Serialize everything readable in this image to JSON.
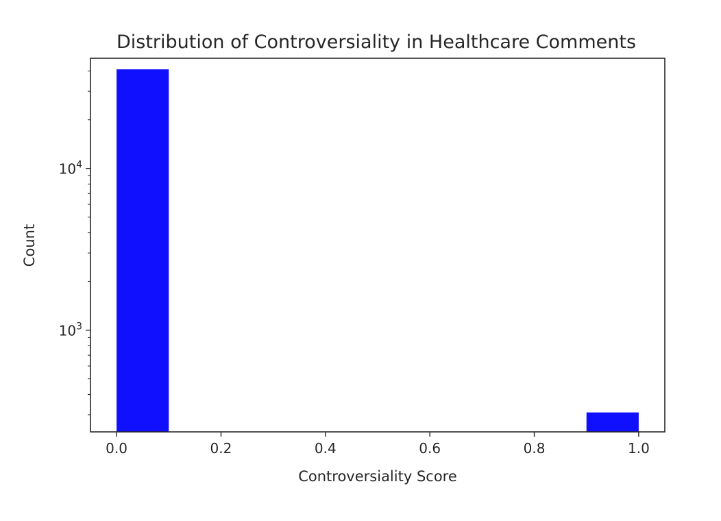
{
  "chart_data": {
    "type": "bar",
    "title": "Distribution of Controversiality in Healthcare Comments",
    "xlabel": "Controversiality Score",
    "ylabel": "Count",
    "y_scale": "log",
    "xlim": [
      -0.05,
      1.05
    ],
    "ylim": [
      235,
      48000
    ],
    "bins": [
      {
        "x_start": 0.0,
        "x_end": 0.1,
        "count": 41000
      },
      {
        "x_start": 0.9,
        "x_end": 1.0,
        "count": 310
      }
    ],
    "x_ticks": [
      {
        "value": 0.0,
        "label": "0.0"
      },
      {
        "value": 0.2,
        "label": "0.2"
      },
      {
        "value": 0.4,
        "label": "0.4"
      },
      {
        "value": 0.6,
        "label": "0.6"
      },
      {
        "value": 0.8,
        "label": "0.8"
      },
      {
        "value": 1.0,
        "label": "1.0"
      }
    ],
    "y_major_ticks": [
      {
        "value": 1000,
        "base": "10",
        "exponent": "3"
      },
      {
        "value": 10000,
        "base": "10",
        "exponent": "4"
      }
    ],
    "grid": false,
    "bar_color": "#1010ff",
    "axis_color": "#262626"
  }
}
